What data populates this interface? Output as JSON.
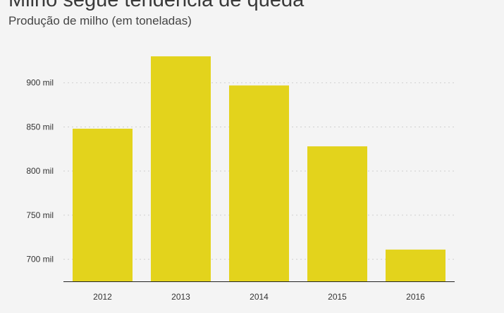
{
  "header": {
    "title": "Milho segue tendência de queda",
    "subtitle": "Produção de milho (em toneladas)"
  },
  "chart_data": {
    "type": "bar",
    "title": "Milho segue tendência de queda",
    "subtitle": "Produção de milho (em toneladas)",
    "xlabel": "",
    "ylabel": "",
    "categories": [
      "2012",
      "2013",
      "2014",
      "2015",
      "2016"
    ],
    "values": [
      848000,
      930000,
      897000,
      828000,
      711000
    ],
    "ylim": [
      675000,
      950000
    ],
    "yticks": [
      700000,
      750000,
      800000,
      850000,
      900000
    ],
    "ytick_labels": [
      "700 mil",
      "750 mil",
      "800 mil",
      "850 mil",
      "900 mil"
    ],
    "grid": true,
    "bar_color": "#e3d31c"
  }
}
